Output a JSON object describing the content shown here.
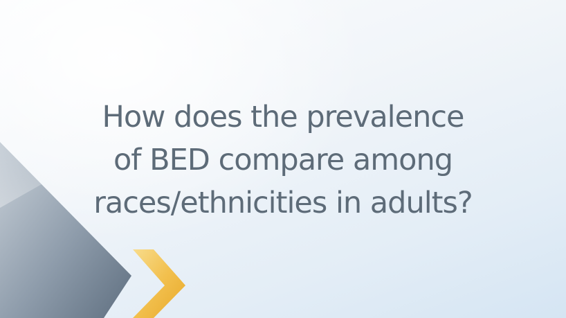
{
  "slide": {
    "question_lines": [
      "How does the prevalence",
      "of BED compare among",
      "races/ethnicities in adults?"
    ]
  },
  "colors": {
    "text": "#5d6b78",
    "chevron_gold": "#f2c04e",
    "chevron_steel": "#7e8e9e",
    "background": "#eef3f8"
  },
  "icons": {
    "decoration": "chevron-arrow-icon"
  }
}
